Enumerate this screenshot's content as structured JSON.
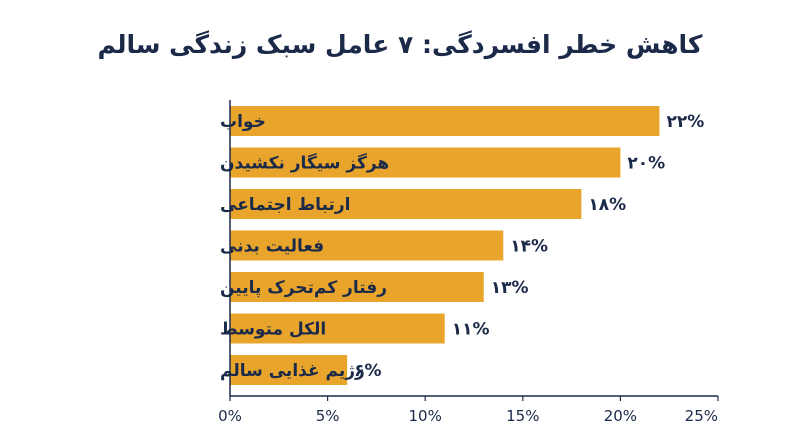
{
  "chart_data": {
    "type": "bar",
    "orientation": "horizontal",
    "title": "کاهش خطر افسردگی: ۷ عامل سبک زندگی سالم",
    "categories": [
      "خواب",
      "هرگز سیگار نکشیدن",
      "ارتباط اجتماعی",
      "فعالیت بدنی",
      "رفتار کم‌تحرک پایین",
      "الکل متوسط",
      "رژیم غذایی سالم"
    ],
    "values": [
      22,
      20,
      18,
      14,
      13,
      11,
      6
    ],
    "value_labels": [
      "۲۲%",
      "۲۰%",
      "۱۸%",
      "۱۴%",
      "۱۳%",
      "۱۱%",
      "۶%"
    ],
    "xlim": [
      0,
      25
    ],
    "xticks": [
      0,
      5,
      10,
      15,
      20,
      25
    ],
    "xtick_labels": [
      "0%",
      "5%",
      "10%",
      "15%",
      "20%",
      "25%"
    ],
    "grid": false,
    "colors": {
      "bar": "#E8A42B",
      "axis": "#1c2a4a",
      "text": "#1c2a4a"
    }
  }
}
